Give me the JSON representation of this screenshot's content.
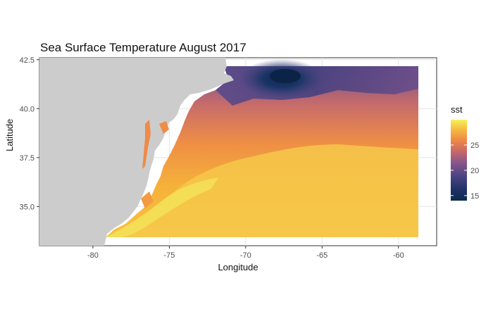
{
  "chart_data": {
    "type": "heatmap",
    "title": "Sea Surface Temperature August 2017",
    "xlabel": "Longitude",
    "ylabel": "Latitude",
    "xlim": [
      -83.5,
      -57.5
    ],
    "ylim": [
      33.0,
      42.6
    ],
    "x_ticks": [
      -80,
      -75,
      -70,
      -65,
      -60
    ],
    "x_tick_labels": [
      "-80",
      "-75",
      "-70",
      "-65",
      "-60"
    ],
    "y_ticks": [
      35.0,
      37.5,
      40.0,
      42.5
    ],
    "y_tick_labels": [
      "35.0",
      "37.5",
      "40.0",
      "42.5"
    ],
    "grid": true,
    "data_extent": {
      "lon": [
        -79.3,
        -58.5
      ],
      "lat": [
        33.5,
        42.2
      ]
    },
    "value_range": [
      14,
      30
    ],
    "sample_points": [
      {
        "lon": -67.0,
        "lat": 41.8,
        "sst": 14
      },
      {
        "lon": -69.0,
        "lat": 41.5,
        "sst": 16
      },
      {
        "lon": -64.0,
        "lat": 41.5,
        "sst": 20
      },
      {
        "lon": -70.5,
        "lat": 40.2,
        "sst": 22
      },
      {
        "lon": -62.0,
        "lat": 40.0,
        "sst": 24
      },
      {
        "lon": -72.0,
        "lat": 38.5,
        "sst": 25
      },
      {
        "lon": -66.0,
        "lat": 38.0,
        "sst": 27
      },
      {
        "lon": -76.0,
        "lat": 35.5,
        "sst": 28
      },
      {
        "lon": -78.0,
        "lat": 34.0,
        "sst": 29
      },
      {
        "lon": -65.0,
        "lat": 35.0,
        "sst": 28
      },
      {
        "lon": -60.0,
        "lat": 36.0,
        "sst": 28
      }
    ],
    "legend": {
      "title": "sst",
      "position": "right",
      "ticks": [
        15,
        20,
        25
      ],
      "tick_labels": [
        "15",
        "20",
        "25"
      ],
      "colors": [
        "#0d2a4f",
        "#2a3a78",
        "#6a4c8c",
        "#a15f7c",
        "#d9745a",
        "#f4a23c",
        "#f7d144",
        "#f3f35a"
      ]
    },
    "land_color": "#cccccc"
  }
}
